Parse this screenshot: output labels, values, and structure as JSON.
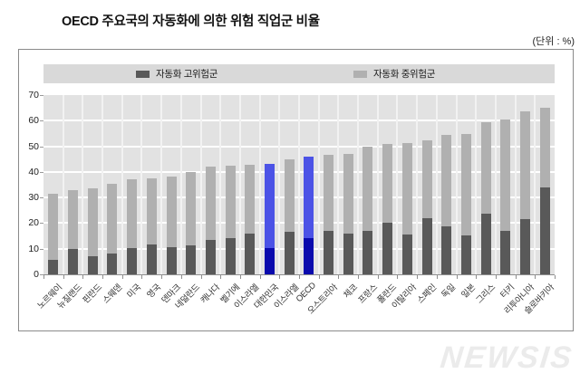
{
  "title": "OECD 주요국의 자동화에 의한 위험 직업군 비율",
  "unit_label": "(단위 : %)",
  "legend": {
    "high_label": "자동화 고위험군",
    "mid_label": "자동화 중위험군"
  },
  "watermark": "NEWSIS",
  "colors": {
    "bar_high": "#595959",
    "bar_mid": "#b0b0b0",
    "bar_high_highlight": "#0a0aad",
    "bar_mid_highlight": "#4c53e6",
    "plot_bg": "#e2e2e2",
    "legend_bg": "#d9d9d9"
  },
  "chart_data": {
    "type": "bar",
    "stacked": true,
    "title": "OECD 주요국의 자동화에 의한 위험 직업군 비율",
    "unit": "%",
    "ylim": [
      0,
      70
    ],
    "yticks": [
      0,
      10,
      20,
      30,
      40,
      50,
      60,
      70
    ],
    "grid": true,
    "legend_position": "top",
    "categories": [
      "노르웨이",
      "뉴질랜드",
      "핀란드",
      "스웨덴",
      "미국",
      "영국",
      "덴마크",
      "네덜란드",
      "캐나다",
      "벨기에",
      "이스라엘",
      "대한민국",
      "이스라엘",
      "OECD",
      "오스트리아",
      "체코",
      "프랑스",
      "폴란드",
      "이탈리아",
      "스페인",
      "독일",
      "일본",
      "그리스",
      "터키",
      "리투아니아",
      "슬로바키아"
    ],
    "series": [
      {
        "name": "자동화 고위험군",
        "values": [
          5.7,
          10.0,
          7.2,
          8.0,
          10.2,
          11.7,
          10.7,
          11.4,
          13.5,
          14.0,
          15.9,
          10.4,
          16.7,
          14.0,
          17.0,
          16.0,
          16.8,
          20.1,
          15.6,
          21.9,
          18.6,
          15.2,
          23.7,
          17.1,
          21.5,
          34.0
        ]
      },
      {
        "name": "자동화 중위험군",
        "values": [
          25.6,
          22.8,
          26.4,
          27.4,
          27.0,
          25.9,
          27.5,
          28.6,
          28.6,
          28.5,
          26.9,
          32.8,
          28.3,
          32.0,
          29.8,
          31.2,
          33.0,
          30.9,
          35.8,
          30.6,
          36.0,
          39.6,
          35.6,
          43.4,
          42.3,
          31.0
        ]
      }
    ],
    "highlighted_indices": [
      11,
      13
    ],
    "highlighted_labels": [
      "대한민국",
      "OECD"
    ]
  }
}
